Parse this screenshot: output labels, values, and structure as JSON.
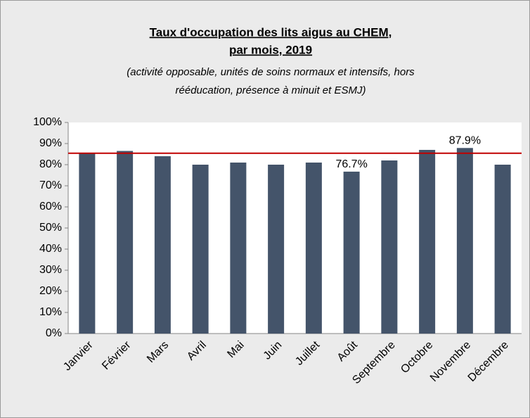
{
  "chart_data": {
    "type": "bar",
    "title": [
      "Taux d'occupation des lits aigus au CHEM,",
      "par mois, 2019"
    ],
    "subtitle": [
      "(activité opposable, unités de soins normaux et intensifs, hors",
      "rééducation, présence à minuit et ESMJ)"
    ],
    "categories": [
      "Janvier",
      "Février",
      "Mars",
      "Avril",
      "Mai",
      "Juin",
      "Juillet",
      "Août",
      "Septembre",
      "Octobre",
      "Novembre",
      "Décembre"
    ],
    "values": [
      85.5,
      86.5,
      84,
      80,
      81,
      80,
      81,
      76.7,
      82,
      87,
      87.9,
      80
    ],
    "value_labels": [
      null,
      null,
      null,
      null,
      null,
      null,
      null,
      "76.7%",
      null,
      null,
      "87.9%",
      null
    ],
    "color": "#44546a",
    "reference_line": 85.4,
    "reference_color": "#c00000",
    "ylim": [
      0,
      100
    ],
    "yticks": [
      {
        "value": 0,
        "label": "0%"
      },
      {
        "value": 10,
        "label": "10%"
      },
      {
        "value": 20,
        "label": "20%"
      },
      {
        "value": 30,
        "label": "30%"
      },
      {
        "value": 40,
        "label": "40%"
      },
      {
        "value": 50,
        "label": "50%"
      },
      {
        "value": 60,
        "label": "60%"
      },
      {
        "value": 70,
        "label": "70%"
      },
      {
        "value": 80,
        "label": "80%"
      },
      {
        "value": 90,
        "label": "90%"
      },
      {
        "value": 100,
        "label": "100%"
      }
    ],
    "grid": false
  }
}
